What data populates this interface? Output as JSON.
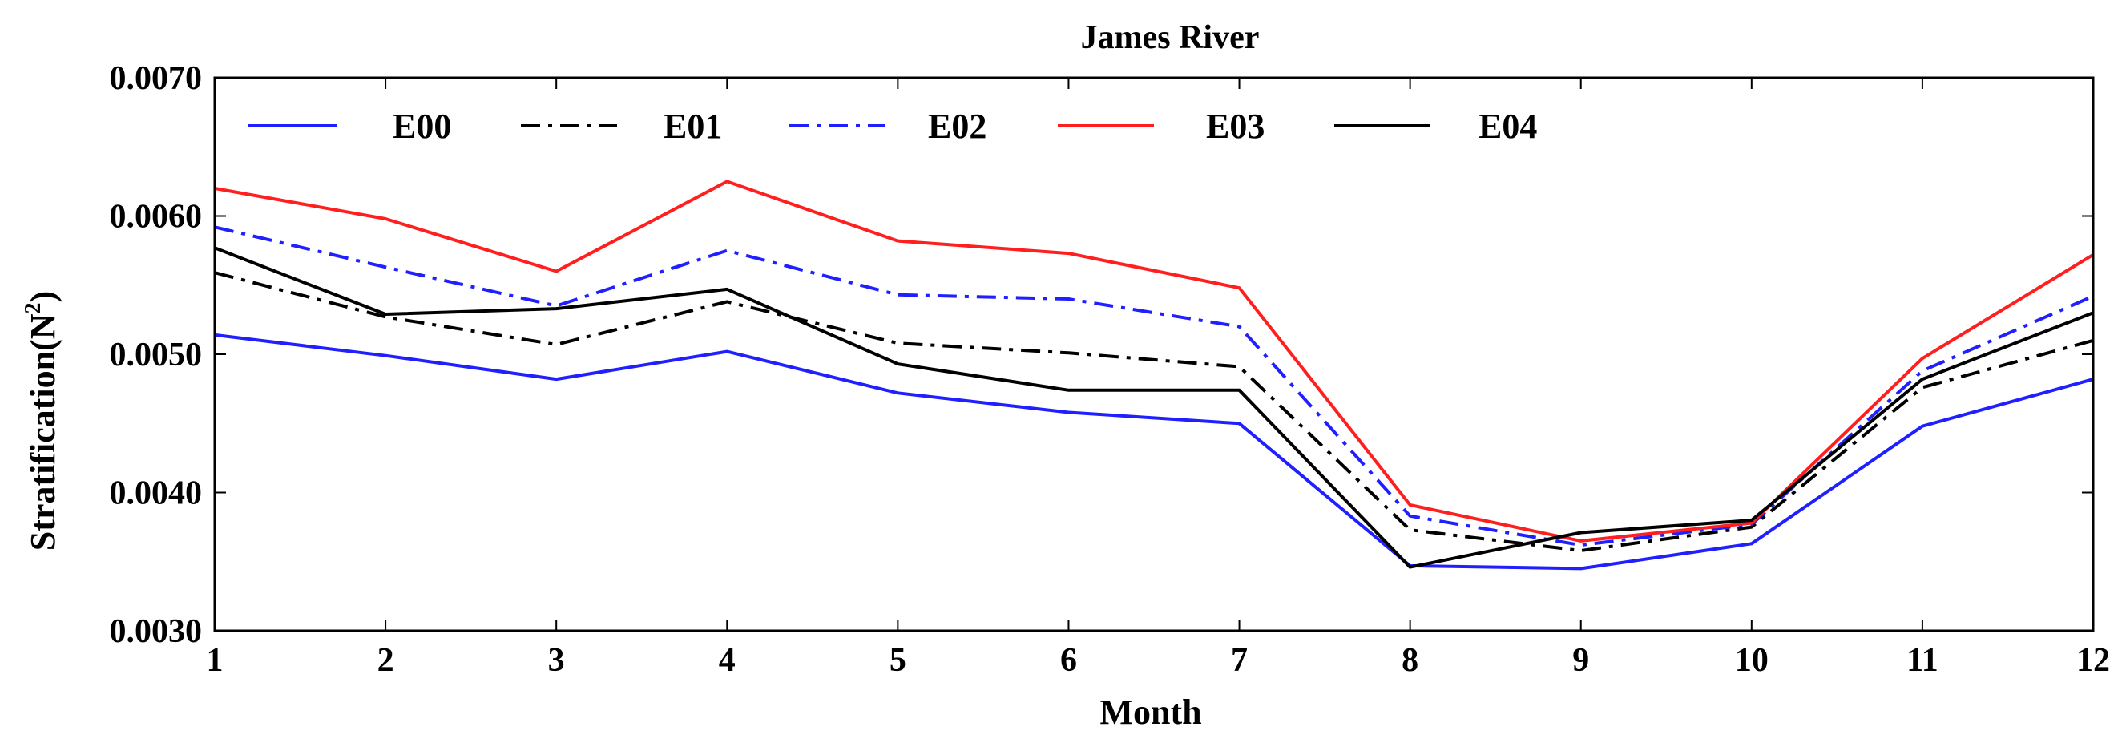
{
  "chart_data": {
    "type": "line",
    "title": "James River",
    "xlabel": "Month",
    "ylabel": "Stratification(N",
    "ylabel_superscript": "2",
    "ylabel_close": ")",
    "xlim": [
      1,
      12
    ],
    "ylim": [
      0.003,
      0.007
    ],
    "x_ticks": [
      1,
      2,
      3,
      4,
      5,
      6,
      7,
      8,
      9,
      10,
      11,
      12
    ],
    "x_tick_labels": [
      "1",
      "2",
      "3",
      "4",
      "5",
      "6",
      "7",
      "8",
      "9",
      "10",
      "11",
      "12"
    ],
    "y_ticks": [
      0.003,
      0.004,
      0.005,
      0.006,
      0.007
    ],
    "y_tick_labels": [
      "0.0030",
      "0.0040",
      "0.0050",
      "0.0060",
      "0.0070"
    ],
    "grid": false,
    "legend_position": "top",
    "x": [
      1,
      2,
      3,
      4,
      5,
      6,
      7,
      8,
      9,
      10,
      11,
      12
    ],
    "series": [
      {
        "name": "E00",
        "color": "#1f1fff",
        "style": "solid",
        "values": [
          0.00514,
          0.00499,
          0.00482,
          0.00502,
          0.00472,
          0.00458,
          0.0045,
          0.00347,
          0.00345,
          0.00363,
          0.00448,
          0.00482
        ]
      },
      {
        "name": "E01",
        "color": "#000000",
        "style": "dashdot",
        "values": [
          0.00559,
          0.00527,
          0.00507,
          0.00538,
          0.00508,
          0.00501,
          0.00491,
          0.00373,
          0.00358,
          0.00375,
          0.00476,
          0.0051
        ]
      },
      {
        "name": "E02",
        "color": "#1f1fff",
        "style": "dashdot",
        "values": [
          0.00592,
          0.00563,
          0.00535,
          0.00575,
          0.00543,
          0.0054,
          0.0052,
          0.00383,
          0.00362,
          0.00377,
          0.00488,
          0.00542
        ]
      },
      {
        "name": "E03",
        "color": "#ff1f1f",
        "style": "solid",
        "values": [
          0.0062,
          0.00598,
          0.0056,
          0.00625,
          0.00582,
          0.00573,
          0.00548,
          0.00391,
          0.00365,
          0.00378,
          0.00497,
          0.00572
        ]
      },
      {
        "name": "E04",
        "color": "#000000",
        "style": "solid",
        "values": [
          0.00577,
          0.00529,
          0.00533,
          0.00547,
          0.00493,
          0.00474,
          0.00474,
          0.00346,
          0.00371,
          0.0038,
          0.00482,
          0.0053
        ]
      }
    ]
  }
}
